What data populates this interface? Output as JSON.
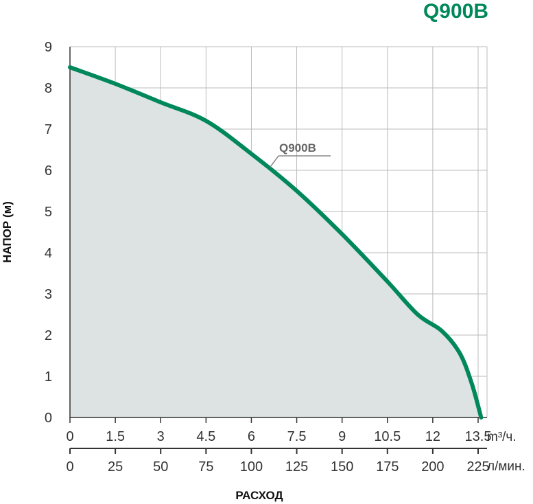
{
  "chart_data": {
    "type": "area",
    "title": "Q900B",
    "ylabel": "НАПОР (м)",
    "xlabel": "РАСХОД",
    "x_unit": "m³/ч.",
    "x2_unit": "л/мин.",
    "ylim": [
      0,
      9
    ],
    "xlim": [
      0,
      13.5
    ],
    "y_ticks": [
      "0",
      "1",
      "2",
      "3",
      "4",
      "5",
      "6",
      "7",
      "8",
      "9"
    ],
    "x_ticks": [
      "0",
      "1.5",
      "3",
      "4.5",
      "6",
      "7.5",
      "9",
      "10.5",
      "12",
      "13.5"
    ],
    "x2_ticks": [
      "0",
      "25",
      "50",
      "75",
      "100",
      "125",
      "150",
      "175",
      "200",
      "225"
    ],
    "grid": true,
    "series": [
      {
        "name": "Q900B",
        "x": [
          0,
          1.5,
          3,
          4.5,
          6,
          7.5,
          9,
          10.5,
          11.5,
          12.3,
          12.9,
          13.3,
          13.6
        ],
        "y": [
          8.5,
          8.1,
          7.65,
          7.2,
          6.4,
          5.5,
          4.45,
          3.3,
          2.5,
          2.1,
          1.55,
          0.8,
          0
        ]
      }
    ],
    "colors": {
      "line": "#00875a",
      "title": "#00875a",
      "fill": "#dde3e3",
      "grid": "#bbbbbb"
    }
  }
}
